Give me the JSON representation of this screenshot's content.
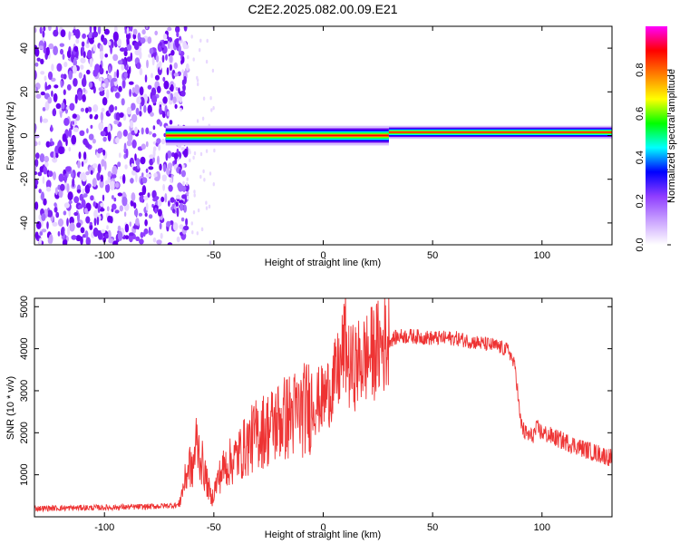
{
  "title": "C2E2.2025.082.00.09.E21",
  "colors": {
    "rainbow": [
      "#ffffff",
      "#e8d8ff",
      "#c9a2ff",
      "#8f3dff",
      "#6a00f0",
      "#0000ff",
      "#00ffff",
      "#00ff00",
      "#ffff00",
      "#ff8000",
      "#ff0000",
      "#ff00ff"
    ],
    "snr_line": "#ee3333"
  },
  "chart_data": [
    {
      "type": "heatmap",
      "name": "spectrogram",
      "xlabel": "Height of straight line (km)",
      "ylabel": "Frequency (Hz)",
      "xlim": [
        -132,
        132
      ],
      "ylim": [
        -50,
        50
      ],
      "xticks": [
        -100,
        -50,
        0,
        50,
        100
      ],
      "xtick_labels": [
        "-100",
        "-50",
        "0",
        "50",
        "100"
      ],
      "yticks": [
        -40,
        -20,
        0,
        20,
        40
      ],
      "ytick_labels": [
        "-40",
        "-20",
        "0",
        "20",
        "40"
      ],
      "noise_region_x": [
        -132,
        -66
      ],
      "signal_band": {
        "x_start": -72,
        "segments": [
          {
            "x": [
              -72,
              30
            ],
            "freq_center": 0,
            "width_hz": 6
          },
          {
            "x": [
              30,
              132
            ],
            "freq_center": 1.5,
            "width_hz": 4
          }
        ]
      },
      "colorbar": {
        "label": "Normalized spectral amplitude",
        "range": [
          0,
          1
        ],
        "ticks": [
          0,
          0.2,
          0.4,
          0.6,
          0.8
        ],
        "tick_labels": [
          "0.0",
          "0.2",
          "0.4",
          "0.6",
          "0.8"
        ]
      }
    },
    {
      "type": "line",
      "name": "snr",
      "xlabel": "Height of straight line (km)",
      "ylabel": "SNR (10 * v/v)",
      "xlim": [
        -132,
        132
      ],
      "ylim": [
        0,
        5200
      ],
      "xticks": [
        -100,
        -50,
        0,
        50,
        100
      ],
      "xtick_labels": [
        "-100",
        "-50",
        "0",
        "50",
        "100"
      ],
      "yticks": [
        1000,
        2000,
        3000,
        4000,
        5000
      ],
      "ytick_labels": [
        "1000",
        "2000",
        "3000",
        "4000",
        "5000"
      ],
      "x": [
        -132,
        -100,
        -80,
        -66,
        -63,
        -61,
        -60,
        -58,
        -55,
        -53,
        -51,
        -50,
        -48,
        -45,
        -40,
        -35,
        -30,
        -25,
        -20,
        -15,
        -10,
        -5,
        0,
        5,
        8,
        10,
        12,
        15,
        20,
        25,
        30,
        35,
        40,
        50,
        60,
        70,
        80,
        85,
        88,
        90,
        92,
        95,
        98,
        100,
        110,
        120,
        132
      ],
      "y": [
        200,
        220,
        240,
        280,
        900,
        1300,
        1000,
        1800,
        1200,
        800,
        400,
        600,
        900,
        1200,
        1400,
        1700,
        2000,
        2100,
        2300,
        2400,
        2500,
        2700,
        2800,
        3200,
        3600,
        4200,
        3500,
        3600,
        3800,
        4000,
        4200,
        4300,
        4300,
        4250,
        4250,
        4150,
        4050,
        3950,
        3500,
        2300,
        2000,
        1900,
        2100,
        2000,
        1800,
        1600,
        1400
      ]
    }
  ]
}
